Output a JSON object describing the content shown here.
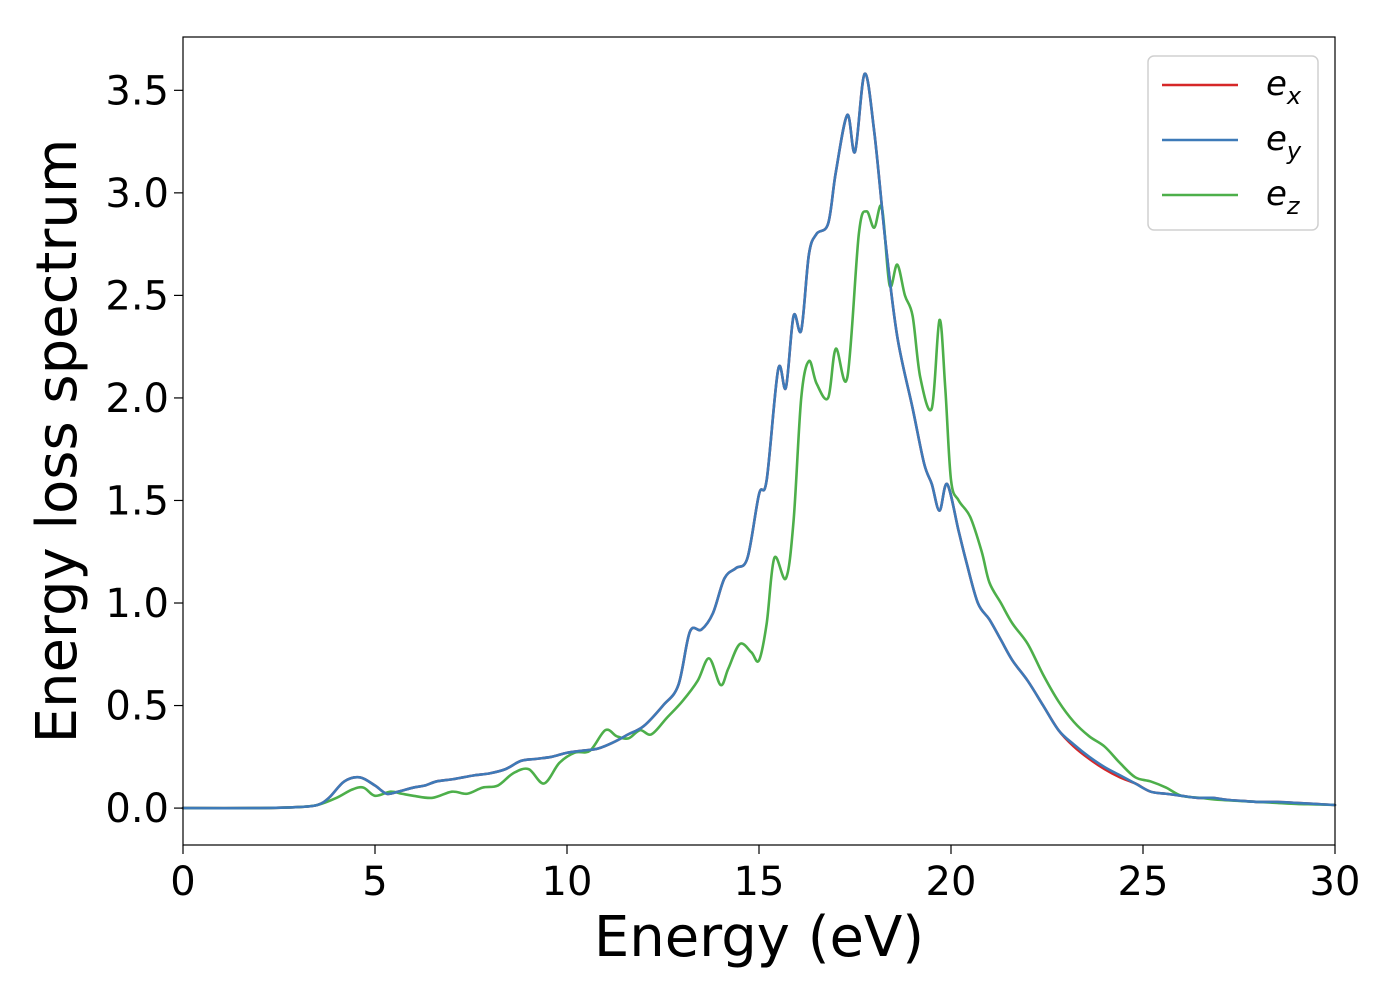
{
  "chart_data": {
    "type": "line",
    "xlabel": "Energy (eV)",
    "ylabel": "Energy loss spectrum",
    "xlim": [
      0,
      30
    ],
    "ylim": [
      -0.18,
      3.76
    ],
    "xticks": [
      0,
      5,
      10,
      15,
      20,
      25,
      30
    ],
    "xtick_labels": [
      "0",
      "5",
      "10",
      "15",
      "20",
      "25",
      "30"
    ],
    "yticks": [
      0.0,
      0.5,
      1.0,
      1.5,
      2.0,
      2.5,
      3.0,
      3.5
    ],
    "ytick_labels": [
      "0.0",
      "0.5",
      "1.0",
      "1.5",
      "2.0",
      "2.5",
      "3.0",
      "3.5"
    ],
    "grid": false,
    "legend_position": "top-right",
    "series": [
      {
        "name": "e",
        "subscript": "x",
        "color": "#d62728",
        "x": [
          0,
          2,
          3,
          3.5,
          3.8,
          4.2,
          4.6,
          5.0,
          5.3,
          5.6,
          6,
          6.3,
          6.6,
          7,
          7.3,
          7.6,
          8,
          8.4,
          8.8,
          9.2,
          9.6,
          10,
          10.4,
          10.8,
          11.2,
          11.6,
          12,
          12.5,
          12.9,
          13.2,
          13.5,
          13.8,
          14.1,
          14.4,
          14.7,
          15.0,
          15.2,
          15.5,
          15.7,
          15.9,
          16.1,
          16.3,
          16.5,
          16.8,
          17.0,
          17.3,
          17.5,
          17.75,
          18.0,
          18.3,
          18.6,
          19.0,
          19.3,
          19.5,
          19.7,
          19.9,
          20.2,
          20.4,
          20.7,
          21.0,
          21.3,
          21.6,
          22.0,
          22.4,
          22.8,
          23.2,
          23.6,
          24.0,
          24.4,
          24.8,
          25.2,
          25.6,
          26.0,
          26.4,
          26.8,
          27.2,
          27.6,
          28.0,
          28.5,
          29.0,
          29.5,
          30
        ],
        "values": [
          0.0,
          0.0,
          0.005,
          0.015,
          0.05,
          0.13,
          0.15,
          0.11,
          0.07,
          0.08,
          0.1,
          0.11,
          0.13,
          0.14,
          0.15,
          0.16,
          0.17,
          0.19,
          0.23,
          0.24,
          0.25,
          0.27,
          0.28,
          0.29,
          0.32,
          0.36,
          0.4,
          0.5,
          0.6,
          0.86,
          0.87,
          0.95,
          1.12,
          1.17,
          1.22,
          1.53,
          1.6,
          2.14,
          2.05,
          2.4,
          2.33,
          2.7,
          2.8,
          2.85,
          3.1,
          3.38,
          3.2,
          3.58,
          3.3,
          2.75,
          2.3,
          1.95,
          1.68,
          1.58,
          1.45,
          1.58,
          1.35,
          1.2,
          1.0,
          0.92,
          0.82,
          0.72,
          0.62,
          0.5,
          0.38,
          0.3,
          0.24,
          0.19,
          0.15,
          0.12,
          0.08,
          0.07,
          0.06,
          0.05,
          0.05,
          0.04,
          0.035,
          0.03,
          0.03,
          0.025,
          0.02,
          0.015
        ]
      },
      {
        "name": "e",
        "subscript": "y",
        "color": "#3d7ab8",
        "x": [
          0,
          2,
          3,
          3.5,
          3.8,
          4.2,
          4.6,
          5.0,
          5.3,
          5.6,
          6,
          6.3,
          6.6,
          7,
          7.3,
          7.6,
          8,
          8.4,
          8.8,
          9.2,
          9.6,
          10,
          10.4,
          10.8,
          11.2,
          11.6,
          12,
          12.5,
          12.9,
          13.2,
          13.5,
          13.8,
          14.1,
          14.4,
          14.7,
          15.0,
          15.2,
          15.5,
          15.7,
          15.9,
          16.1,
          16.3,
          16.5,
          16.8,
          17.0,
          17.3,
          17.5,
          17.75,
          18.0,
          18.3,
          18.6,
          19.0,
          19.3,
          19.5,
          19.7,
          19.9,
          20.2,
          20.4,
          20.7,
          21.0,
          21.3,
          21.6,
          22.0,
          22.4,
          22.8,
          23.2,
          23.6,
          24.0,
          24.4,
          24.8,
          25.2,
          25.6,
          26.0,
          26.4,
          26.8,
          27.2,
          27.6,
          28.0,
          28.5,
          29.0,
          29.5,
          30
        ],
        "values": [
          0.0,
          0.0,
          0.005,
          0.015,
          0.05,
          0.13,
          0.15,
          0.11,
          0.07,
          0.08,
          0.1,
          0.11,
          0.13,
          0.14,
          0.15,
          0.16,
          0.17,
          0.19,
          0.23,
          0.24,
          0.25,
          0.27,
          0.28,
          0.29,
          0.32,
          0.36,
          0.4,
          0.5,
          0.6,
          0.86,
          0.87,
          0.95,
          1.12,
          1.17,
          1.22,
          1.53,
          1.6,
          2.14,
          2.05,
          2.4,
          2.33,
          2.7,
          2.8,
          2.85,
          3.1,
          3.38,
          3.2,
          3.58,
          3.3,
          2.75,
          2.3,
          1.95,
          1.68,
          1.58,
          1.45,
          1.58,
          1.35,
          1.2,
          1.0,
          0.92,
          0.82,
          0.72,
          0.62,
          0.5,
          0.38,
          0.31,
          0.25,
          0.2,
          0.16,
          0.12,
          0.08,
          0.07,
          0.06,
          0.05,
          0.05,
          0.04,
          0.035,
          0.03,
          0.03,
          0.025,
          0.02,
          0.015
        ]
      },
      {
        "name": "e",
        "subscript": "z",
        "color": "#4daf4a",
        "x": [
          0,
          2,
          3,
          3.5,
          4.0,
          4.4,
          4.7,
          5.0,
          5.4,
          5.7,
          6,
          6.5,
          7,
          7.4,
          7.8,
          8.2,
          8.6,
          9.0,
          9.4,
          9.8,
          10.2,
          10.6,
          11.0,
          11.3,
          11.6,
          11.9,
          12.2,
          12.6,
          13.0,
          13.4,
          13.7,
          14.0,
          14.2,
          14.5,
          14.8,
          15.0,
          15.2,
          15.4,
          15.7,
          15.9,
          16.1,
          16.3,
          16.5,
          16.8,
          17.0,
          17.3,
          17.6,
          17.8,
          18.0,
          18.2,
          18.4,
          18.6,
          18.8,
          19.0,
          19.2,
          19.5,
          19.7,
          19.85,
          20.0,
          20.2,
          20.5,
          20.8,
          21.0,
          21.3,
          21.6,
          22.0,
          22.4,
          22.8,
          23.2,
          23.6,
          24.0,
          24.4,
          24.8,
          25.2,
          25.6,
          26.0,
          26.5,
          27.0,
          27.5,
          28.0,
          28.5,
          29,
          29.5,
          30
        ],
        "values": [
          0.0,
          0.0,
          0.005,
          0.015,
          0.05,
          0.09,
          0.1,
          0.06,
          0.08,
          0.07,
          0.06,
          0.05,
          0.08,
          0.07,
          0.1,
          0.11,
          0.17,
          0.19,
          0.12,
          0.22,
          0.27,
          0.28,
          0.38,
          0.35,
          0.34,
          0.38,
          0.36,
          0.44,
          0.52,
          0.62,
          0.73,
          0.6,
          0.68,
          0.8,
          0.76,
          0.72,
          0.9,
          1.22,
          1.12,
          1.4,
          2.0,
          2.18,
          2.07,
          2.0,
          2.24,
          2.1,
          2.8,
          2.91,
          2.83,
          2.93,
          2.55,
          2.65,
          2.5,
          2.4,
          2.1,
          1.95,
          2.38,
          2.05,
          1.6,
          1.5,
          1.42,
          1.25,
          1.1,
          1.0,
          0.9,
          0.8,
          0.65,
          0.52,
          0.42,
          0.35,
          0.3,
          0.22,
          0.15,
          0.13,
          0.1,
          0.06,
          0.05,
          0.04,
          0.035,
          0.03,
          0.025,
          0.02,
          0.018,
          0.015
        ]
      }
    ]
  }
}
